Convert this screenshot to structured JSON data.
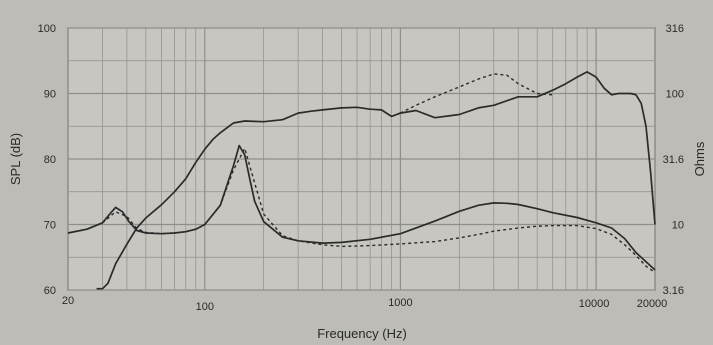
{
  "chart_data": {
    "type": "line",
    "title": "",
    "xlabel": "Frequency (Hz)",
    "ylabel": "SPL (dB)",
    "y2label": "Ohms",
    "x_scale": "log",
    "xlim": [
      20,
      20000
    ],
    "ylim": [
      60,
      100
    ],
    "y2_scale": "log",
    "y2lim": [
      3.16,
      316
    ],
    "grid": true,
    "x_ticks": [
      "20",
      "100",
      "1000",
      "10000",
      "20000"
    ],
    "y_ticks": [
      "60",
      "70",
      "80",
      "90",
      "100"
    ],
    "y2_ticks": [
      "3.16",
      "10",
      "31.6",
      "100",
      "316"
    ],
    "colors": {
      "background": "#bdbcb6",
      "plot": "#c7c6c0",
      "grid": "#8e8e8a",
      "line": "#2b2b2b"
    },
    "series": [
      {
        "style": "solid",
        "axis": "left",
        "x": [
          28,
          30,
          32,
          35,
          40,
          45,
          50,
          60,
          70,
          80,
          90,
          100,
          110,
          120,
          140,
          160,
          200,
          250,
          300,
          350,
          400,
          500,
          600,
          700,
          800,
          900,
          1000,
          1200,
          1500,
          2000,
          2500,
          3000,
          4000,
          5000,
          6000,
          7000,
          8000,
          9000,
          10000,
          11000,
          12000,
          13000,
          14000,
          15000,
          16000,
          17000,
          18000,
          19000,
          20000
        ],
        "y": [
          60.2,
          60.2,
          61.0,
          64.0,
          67.0,
          69.5,
          71.0,
          73.0,
          75.0,
          77.0,
          79.5,
          81.5,
          83.0,
          84.0,
          85.5,
          85.8,
          85.7,
          86.0,
          87.0,
          87.3,
          87.5,
          87.8,
          87.9,
          87.6,
          87.5,
          86.5,
          87.0,
          87.4,
          86.3,
          86.8,
          87.8,
          88.2,
          89.5,
          89.5,
          90.5,
          91.5,
          92.5,
          93.3,
          92.5,
          90.8,
          89.8,
          90.0,
          90.0,
          90.0,
          89.8,
          88.5,
          85.0,
          78.0,
          70.0
        ]
      },
      {
        "style": "dashed",
        "axis": "left",
        "x": [
          1000,
          1200,
          1500,
          2000,
          2500,
          3000,
          3500,
          4000,
          5000,
          6000
        ],
        "y": [
          87.0,
          88.2,
          89.5,
          91.0,
          92.2,
          93.0,
          92.8,
          91.5,
          90.0,
          89.8
        ]
      },
      {
        "style": "solid",
        "axis": "right",
        "x": [
          20,
          25,
          30,
          33,
          35,
          38,
          41,
          45,
          50,
          60,
          70,
          80,
          90,
          100,
          120,
          140,
          150,
          160,
          170,
          180,
          200,
          250,
          300,
          400,
          500,
          700,
          1000,
          1500,
          2000,
          2500,
          3000,
          3500,
          4000,
          5000,
          6000,
          8000,
          10000,
          12000,
          14000,
          16000,
          18000,
          20000
        ],
        "y": [
          8.6,
          9.2,
          10.3,
          12.2,
          13.5,
          12.5,
          10.5,
          9.0,
          8.6,
          8.5,
          8.6,
          8.8,
          9.2,
          10.0,
          14.0,
          28.0,
          40.0,
          34.0,
          22.0,
          15.0,
          10.5,
          8.0,
          7.5,
          7.2,
          7.3,
          7.7,
          8.5,
          10.6,
          12.6,
          14.0,
          14.6,
          14.5,
          14.2,
          13.2,
          12.3,
          11.3,
          10.3,
          9.4,
          7.8,
          6.1,
          5.2,
          4.5
        ]
      },
      {
        "style": "dashed",
        "axis": "right",
        "x": [
          20,
          25,
          30,
          35,
          40,
          45,
          50,
          60,
          70,
          80,
          90,
          100,
          120,
          140,
          160,
          200,
          250,
          300,
          400,
          500,
          700,
          1000,
          1500,
          2000,
          2500,
          3000,
          4000,
          5000,
          6000,
          8000,
          10000,
          12000,
          14000,
          16000,
          18000,
          20000
        ],
        "y": [
          8.6,
          9.2,
          10.3,
          12.5,
          11.5,
          9.3,
          8.7,
          8.5,
          8.6,
          8.8,
          9.2,
          10.0,
          14.0,
          26.0,
          38.0,
          12.0,
          8.2,
          7.5,
          7.0,
          6.8,
          6.9,
          7.1,
          7.4,
          7.9,
          8.4,
          8.9,
          9.4,
          9.7,
          9.8,
          9.8,
          9.3,
          8.4,
          7.0,
          5.8,
          4.8,
          4.3
        ]
      }
    ]
  }
}
